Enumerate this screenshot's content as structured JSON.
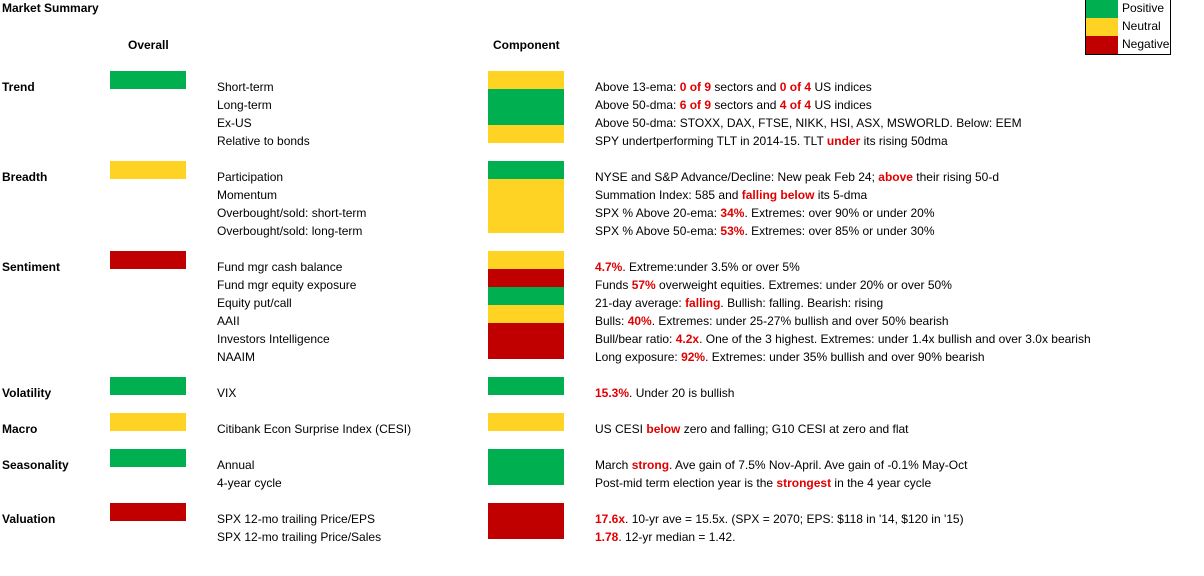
{
  "title": "Market Summary",
  "headers": {
    "overall": "Overall",
    "component": "Component"
  },
  "colors": {
    "green": "#00b050",
    "yellow": "#ffd324",
    "red": "#c00000",
    "highlight": "#e00000"
  },
  "legend": [
    {
      "label": "Positive",
      "color": "green"
    },
    {
      "label": "Neutral",
      "color": "yellow"
    },
    {
      "label": "Negative",
      "color": "red"
    }
  ],
  "sections": [
    {
      "name": "Trend",
      "overall": "green",
      "rows": [
        {
          "label": "Short-term",
          "component": "yellow",
          "detail": [
            [
              "Above 13-ema: ",
              0
            ],
            [
              "0 of 9",
              1
            ],
            [
              " sectors and ",
              0
            ],
            [
              "0 of 4",
              1
            ],
            [
              " US indices",
              0
            ]
          ]
        },
        {
          "label": "Long-term",
          "component": "green",
          "detail": [
            [
              "Above 50-dma: ",
              0
            ],
            [
              "6 of 9",
              1
            ],
            [
              " sectors and ",
              0
            ],
            [
              "4 of 4",
              1
            ],
            [
              " US indices",
              0
            ]
          ]
        },
        {
          "label": "Ex-US",
          "component": "green",
          "detail": [
            [
              "Above 50-dma:  STOXX, DAX, FTSE, NIKK, HSI, ASX, MSWORLD.  Below: EEM",
              0
            ]
          ]
        },
        {
          "label": "Relative to bonds",
          "component": "yellow",
          "detail": [
            [
              "SPY undertperforming TLT in 2014-15. TLT ",
              0
            ],
            [
              "under",
              1
            ],
            [
              " its rising 50dma",
              0
            ]
          ]
        }
      ]
    },
    {
      "name": "Breadth",
      "overall": "yellow",
      "rows": [
        {
          "label": "Participation",
          "component": "green",
          "detail": [
            [
              "NYSE and S&P Advance/Decline: New peak Feb 24; ",
              0
            ],
            [
              "above",
              1
            ],
            [
              " their rising 50-d",
              0
            ]
          ]
        },
        {
          "label": "Momentum",
          "component": "yellow",
          "detail": [
            [
              "Summation Index: 585 and ",
              0
            ],
            [
              "falling below",
              1
            ],
            [
              " its 5-dma",
              0
            ]
          ]
        },
        {
          "label": "Overbought/sold: short-term",
          "component": "yellow",
          "detail": [
            [
              "SPX % Above 20-ema: ",
              0
            ],
            [
              "34%",
              1
            ],
            [
              ". Extremes: over 90% or under 20%",
              0
            ]
          ]
        },
        {
          "label": "Overbought/sold: long-term",
          "component": "yellow",
          "detail": [
            [
              "SPX % Above 50-ema: ",
              0
            ],
            [
              "53%",
              1
            ],
            [
              ". Extremes: over 85% or under 30%",
              0
            ]
          ]
        }
      ]
    },
    {
      "name": "Sentiment",
      "overall": "red",
      "rows": [
        {
          "label": "Fund mgr cash balance",
          "component": "yellow",
          "detail": [
            [
              "4.7%",
              1
            ],
            [
              ". Extreme:under 3.5% or over 5%",
              0
            ]
          ]
        },
        {
          "label": "Fund mgr equity exposure",
          "component": "red",
          "detail": [
            [
              "Funds ",
              0
            ],
            [
              "57%",
              1
            ],
            [
              " overweight equities. Extremes: under 20% or over 50%",
              0
            ]
          ]
        },
        {
          "label": "Equity put/call",
          "component": "green",
          "detail": [
            [
              "21-day average: ",
              0
            ],
            [
              "falling",
              1
            ],
            [
              ". Bullish: falling. Bearish: rising",
              0
            ]
          ]
        },
        {
          "label": "AAII",
          "component": "yellow",
          "detail": [
            [
              "Bulls: ",
              0
            ],
            [
              "40%",
              1
            ],
            [
              ". Extremes: under 25-27% bullish and over 50% bearish",
              0
            ]
          ]
        },
        {
          "label": "Investors Intelligence",
          "component": "red",
          "detail": [
            [
              "Bull/bear ratio: ",
              0
            ],
            [
              "4.2x",
              1
            ],
            [
              ". One of the 3 highest. Extremes: under 1.4x bullish and over 3.0x bearish",
              0
            ]
          ]
        },
        {
          "label": "NAAIM",
          "component": "red",
          "detail": [
            [
              "Long exposure: ",
              0
            ],
            [
              "92%",
              1
            ],
            [
              ". Extremes: under 35% bullish and over 90% bearish",
              0
            ]
          ]
        }
      ]
    },
    {
      "name": "Volatility",
      "overall": "green",
      "rows": [
        {
          "label": "VIX",
          "component": "green",
          "detail": [
            [
              "15.3%",
              1
            ],
            [
              ". Under 20 is bullish",
              0
            ]
          ]
        }
      ]
    },
    {
      "name": "Macro",
      "overall": "yellow",
      "rows": [
        {
          "label": "Citibank Econ Surprise Index (CESI)",
          "component": "yellow",
          "detail": [
            [
              "US CESI ",
              0
            ],
            [
              "below",
              1
            ],
            [
              " zero and falling;  G10 CESI at zero and flat",
              0
            ]
          ]
        }
      ]
    },
    {
      "name": "Seasonality",
      "overall": "green",
      "rows": [
        {
          "label": "Annual",
          "component": "green",
          "detail": [
            [
              "March ",
              0
            ],
            [
              "strong",
              1
            ],
            [
              ". Ave gain of 7.5% Nov-April. Ave gain of -0.1% May-Oct",
              0
            ]
          ]
        },
        {
          "label": "4-year cycle",
          "component": "green",
          "detail": [
            [
              "Post-mid term election year is the ",
              0
            ],
            [
              "strongest",
              1
            ],
            [
              " in the 4 year cycle",
              0
            ]
          ]
        }
      ]
    },
    {
      "name": "Valuation",
      "overall": "red",
      "rows": [
        {
          "label": "SPX 12-mo trailing Price/EPS",
          "component": "red",
          "detail": [
            [
              "17.6x",
              1
            ],
            [
              ". 10-yr ave = 15.5x.  (SPX = 2070; EPS: $118 in '14, $120 in '15)",
              0
            ]
          ]
        },
        {
          "label": "SPX 12-mo trailing Price/Sales",
          "component": "red",
          "detail": [
            [
              "1.78",
              1
            ],
            [
              ". 12-yr median = 1.42.",
              0
            ]
          ]
        }
      ]
    }
  ]
}
